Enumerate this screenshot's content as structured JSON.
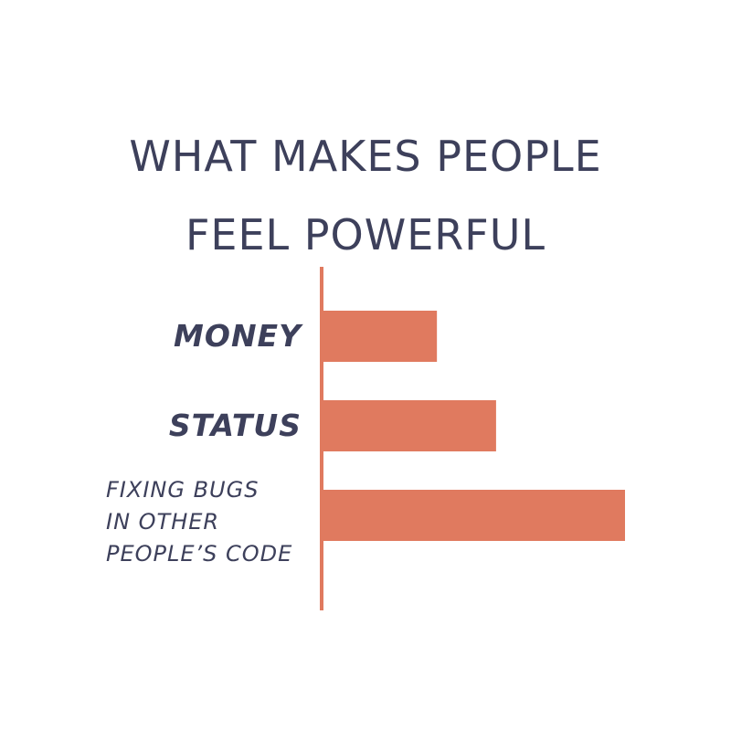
{
  "chart_data": {
    "type": "bar",
    "orientation": "horizontal",
    "title": "WHAT MAKES PEOPLE\nFEEL POWERFUL",
    "categories": [
      "MONEY",
      "STATUS",
      "FIXING BUGS\nIN OTHER\nPEOPLE’S CODE"
    ],
    "values": [
      38,
      57.5,
      100
    ],
    "xlim": [
      0,
      100
    ],
    "xlabel": "",
    "ylabel": "",
    "grid": false,
    "colors": {
      "bar": "#E07A5F",
      "axis": "#E07A5F",
      "text": "#3D405B"
    }
  }
}
